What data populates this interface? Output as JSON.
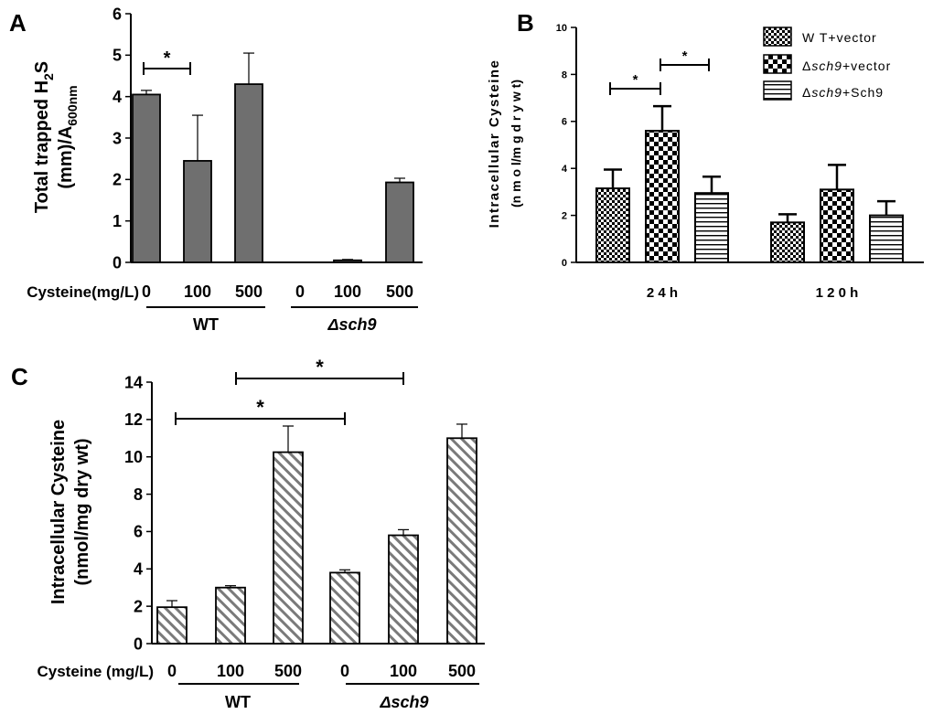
{
  "chart_data": [
    {
      "panel": "A",
      "type": "bar",
      "ylabel_line1": "Total trapped H",
      "ylabel_sub1": "2",
      "ylabel_tail1": "S",
      "ylabel_line2": "(mm)/A",
      "ylabel_sub2": "600nm",
      "ylim": [
        0,
        6
      ],
      "yticks": [
        "0",
        "1",
        "2",
        "3",
        "4",
        "5",
        "6"
      ],
      "row_label": "Cysteine(mg/L)",
      "categories": [
        "0",
        "100",
        "500",
        "0",
        "100",
        "500"
      ],
      "groups": [
        "WT",
        "Δsch9"
      ],
      "values": [
        4.05,
        2.45,
        4.3,
        0,
        0.05,
        1.93
      ],
      "errors": [
        0.1,
        1.1,
        0.75,
        0,
        0.02,
        0.1
      ],
      "color": "#6f6f6f",
      "significance": [
        {
          "from": 0,
          "to": 1,
          "label": "*"
        }
      ]
    },
    {
      "panel": "B",
      "type": "bar",
      "ylabel_line1": "Intracellular Cysteine",
      "ylabel_line2": "(n m o l/m g  d r y  w t)",
      "ylim": [
        0,
        10
      ],
      "yticks": [
        "0",
        "2",
        "4",
        "6",
        "8",
        "10"
      ],
      "categories": [
        "2 4 h",
        "1 2 0 h"
      ],
      "series": [
        {
          "name": "W T+vector",
          "values": [
            3.15,
            1.7
          ],
          "errors": [
            0.8,
            0.35
          ]
        },
        {
          "name_pre": "Δ",
          "name_it": "sch9",
          "name_post": "+vector",
          "values": [
            5.6,
            3.1
          ],
          "errors": [
            1.05,
            1.05
          ]
        },
        {
          "name_pre": "Δ",
          "name_it": "sch9",
          "name_post": "+Sch9",
          "values": [
            2.95,
            2.0
          ],
          "errors": [
            0.7,
            0.6
          ]
        }
      ],
      "significance": [
        {
          "label": "*"
        },
        {
          "label": "*"
        }
      ]
    },
    {
      "panel": "C",
      "type": "bar",
      "ylabel_line1": "Intracellular Cysteine",
      "ylabel_line2": "(nmol/mg dry wt)",
      "ylim": [
        0,
        14
      ],
      "yticks": [
        "0",
        "2",
        "4",
        "6",
        "8",
        "10",
        "12",
        "14"
      ],
      "row_label": "Cysteine (mg/L)",
      "categories": [
        "0",
        "100",
        "500",
        "0",
        "100",
        "500"
      ],
      "groups": [
        "WT",
        "Δsch9"
      ],
      "values": [
        1.95,
        3.0,
        10.25,
        3.8,
        5.8,
        11.0
      ],
      "errors": [
        0.35,
        0.1,
        1.4,
        0.15,
        0.3,
        0.75
      ],
      "significance": [
        {
          "from": 0,
          "to": 3,
          "label": "*"
        },
        {
          "from": 1,
          "to": 4,
          "label": "*"
        }
      ]
    }
  ]
}
